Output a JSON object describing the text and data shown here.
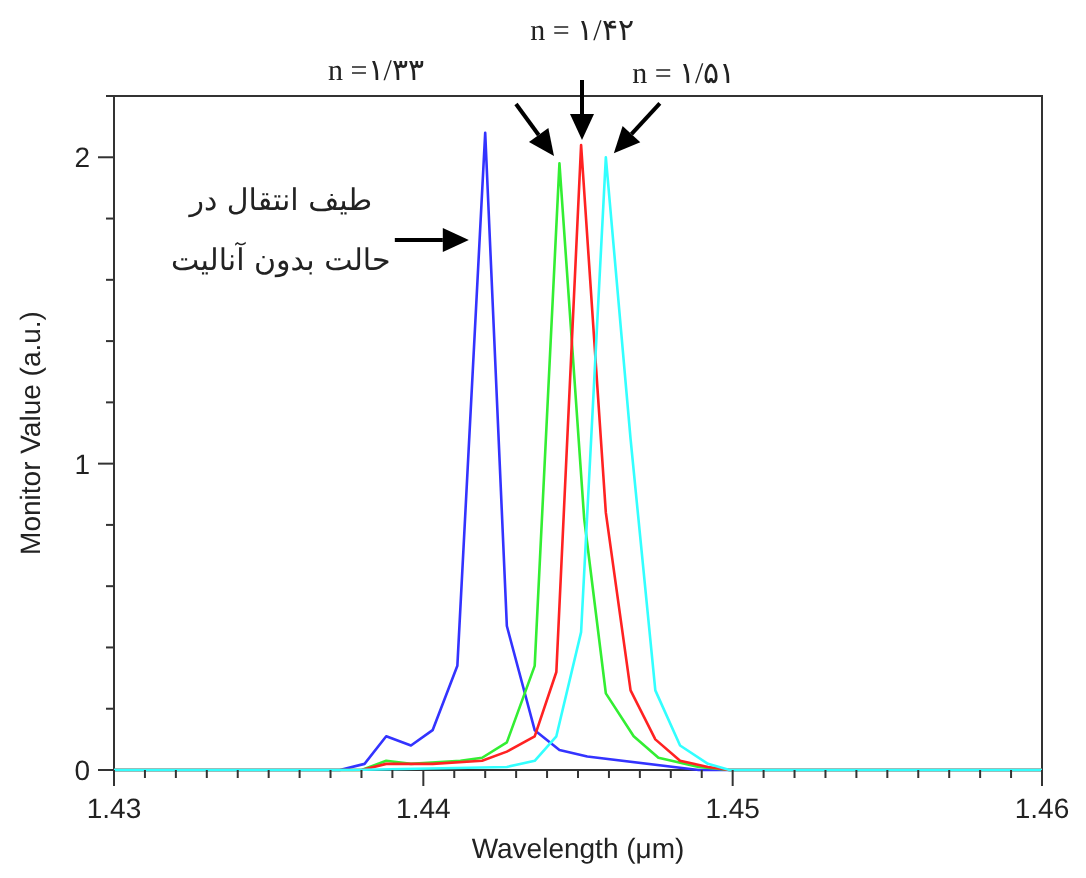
{
  "chart_data": {
    "type": "line",
    "xlabel": "Wavelength (μm)",
    "ylabel": "Monitor Value (a.u.)",
    "xlim": [
      1.43,
      1.46
    ],
    "ylim": [
      0,
      2.2
    ],
    "xticks": [
      1.43,
      {
        "value": 1.431,
        "label": null
      },
      {
        "value": 1.432,
        "label": null
      },
      {
        "value": 1.433,
        "label": null
      },
      {
        "value": 1.434,
        "label": null
      },
      {
        "value": 1.435,
        "label": null
      },
      {
        "value": 1.436,
        "label": null
      },
      {
        "value": 1.437,
        "label": null
      },
      {
        "value": 1.438,
        "label": null
      },
      {
        "value": 1.439,
        "label": null
      },
      1.44,
      {
        "value": 1.441,
        "label": null
      },
      {
        "value": 1.442,
        "label": null
      },
      {
        "value": 1.443,
        "label": null
      },
      {
        "value": 1.444,
        "label": null
      },
      {
        "value": 1.445,
        "label": null
      },
      {
        "value": 1.446,
        "label": null
      },
      {
        "value": 1.447,
        "label": null
      },
      {
        "value": 1.448,
        "label": null
      },
      {
        "value": 1.449,
        "label": null
      },
      1.45,
      {
        "value": 1.451,
        "label": null
      },
      {
        "value": 1.452,
        "label": null
      },
      {
        "value": 1.453,
        "label": null
      },
      {
        "value": 1.454,
        "label": null
      },
      {
        "value": 1.455,
        "label": null
      },
      {
        "value": 1.456,
        "label": null
      },
      {
        "value": 1.457,
        "label": null
      },
      {
        "value": 1.458,
        "label": null
      },
      {
        "value": 1.459,
        "label": null
      },
      1.46
    ],
    "yticks": [
      0,
      {
        "value": 0.2,
        "label": null
      },
      {
        "value": 0.4,
        "label": null
      },
      {
        "value": 0.6,
        "label": null
      },
      {
        "value": 0.8,
        "label": null
      },
      1,
      {
        "value": 1.2,
        "label": null
      },
      {
        "value": 1.4,
        "label": null
      },
      {
        "value": 1.6,
        "label": null
      },
      {
        "value": 1.8,
        "label": null
      },
      2,
      {
        "value": 2.2,
        "label": null
      }
    ],
    "grid": false,
    "marker": "none",
    "line_style": "solid",
    "series": [
      {
        "color": "#3333ff",
        "x": [
          1.43,
          1.4373,
          1.4381,
          1.4388,
          1.4396,
          1.4403,
          1.4411,
          1.442,
          1.4427,
          1.4436,
          1.4444,
          1.4453,
          1.4489,
          1.46
        ],
        "values": [
          0,
          0,
          0.02,
          0.11,
          0.08,
          0.13,
          0.34,
          2.08,
          0.47,
          0.13,
          0.065,
          0.044,
          0,
          0
        ]
      },
      {
        "color": "#33ee33",
        "x": [
          1.43,
          1.438,
          1.4388,
          1.4396,
          1.4412,
          1.4419,
          1.4427,
          1.4436,
          1.4444,
          1.4452,
          1.4459,
          1.4468,
          1.4476,
          1.4489,
          1.4499,
          1.46
        ],
        "values": [
          0,
          0,
          0.03,
          0.02,
          0.03,
          0.04,
          0.09,
          0.34,
          1.98,
          0.82,
          0.25,
          0.11,
          0.04,
          0.01,
          0,
          0
        ]
      },
      {
        "color": "#ff2222",
        "x": [
          1.43,
          1.438,
          1.4388,
          1.4403,
          1.4419,
          1.4427,
          1.4436,
          1.4443,
          1.4451,
          1.4459,
          1.4467,
          1.4475,
          1.4483,
          1.4492,
          1.4499,
          1.46
        ],
        "values": [
          0,
          0,
          0.02,
          0.02,
          0.03,
          0.06,
          0.11,
          0.32,
          2.04,
          0.84,
          0.26,
          0.1,
          0.03,
          0.01,
          0,
          0
        ]
      },
      {
        "color": "#33ffff",
        "x": [
          1.43,
          1.4377,
          1.4427,
          1.4436,
          1.4443,
          1.4451,
          1.4459,
          1.4467,
          1.4475,
          1.4483,
          1.4492,
          1.4499,
          1.46
        ],
        "values": [
          0,
          0,
          0.01,
          0.03,
          0.11,
          0.45,
          2.0,
          1.08,
          0.26,
          0.08,
          0.02,
          0,
          0
        ]
      }
    ],
    "annotations": [
      "n =۱/۳۳",
      "n = ۱/۴۲",
      {
        "text": "n = ۱/۵۱",
        "x": 1.4459,
        "y": 2.0
      },
      {
        "text": "طيف انتقال در\nحالت بدون آناليت",
        "x": 1.4416,
        "y": 1.73
      }
    ]
  }
}
